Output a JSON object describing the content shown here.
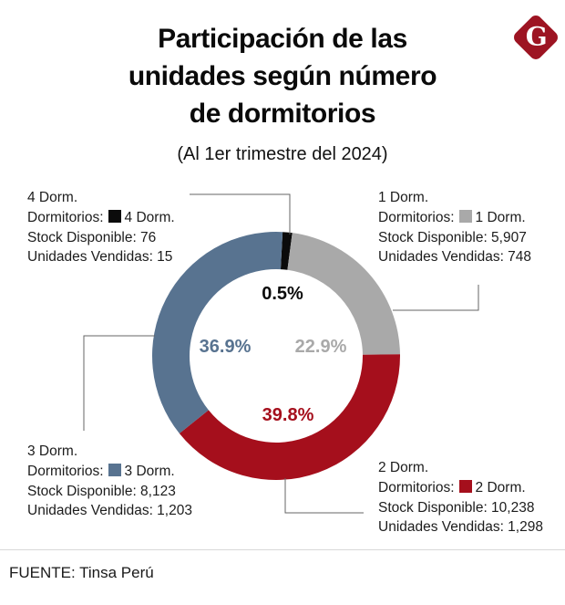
{
  "header": {
    "title_lines": [
      "Participación de las",
      "unidades según número",
      "de dormitorios"
    ],
    "subtitle": "(Al 1er trimestre del 2024)",
    "logo_letter": "G",
    "logo_color": "#9d1422"
  },
  "chart_data": {
    "type": "pie",
    "donut": true,
    "title": "Participación de las unidades según número de dormitorios (Al 1er trimestre del 2024)",
    "unit": "%",
    "start_at_top": true,
    "clockwise": true,
    "slices": [
      {
        "name": "4 Dorm.",
        "value": 0.5,
        "pct_label": "0.5%",
        "color": "#0b0b0b",
        "stock_disponible": 76,
        "unidades_vendidas": 15
      },
      {
        "name": "1 Dorm.",
        "value": 22.9,
        "pct_label": "22.9%",
        "color": "#a9a9a9",
        "stock_disponible": 5907,
        "unidades_vendidas": 748
      },
      {
        "name": "2 Dorm.",
        "value": 39.8,
        "pct_label": "39.8%",
        "color": "#a50f1c",
        "stock_disponible": 10238,
        "unidades_vendidas": 1298
      },
      {
        "name": "3 Dorm.",
        "value": 36.9,
        "pct_label": "36.9%",
        "color": "#587390",
        "stock_disponible": 8123,
        "unidades_vendidas": 1203
      }
    ]
  },
  "annotations": [
    {
      "title": "4 Dorm.",
      "legend_label": "Dormitorios:",
      "legend_value": "4 Dorm.",
      "stock_line": "Stock Disponible: 76",
      "sold_line": "Unidades Vendidas: 15",
      "color": "#0b0b0b"
    },
    {
      "title": "1 Dorm.",
      "legend_label": "Dormitorios:",
      "legend_value": "1 Dorm.",
      "stock_line": "Stock Disponible: 5,907",
      "sold_line": "Unidades Vendidas: 748",
      "color": "#a9a9a9"
    },
    {
      "title": "3 Dorm.",
      "legend_label": "Dormitorios:",
      "legend_value": "3 Dorm.",
      "stock_line": "Stock Disponible: 8,123",
      "sold_line": "Unidades Vendidas: 1,203",
      "color": "#587390"
    },
    {
      "title": "2 Dorm.",
      "legend_label": "Dormitorios:",
      "legend_value": "2 Dorm.",
      "stock_line": "Stock Disponible: 10,238",
      "sold_line": "Unidades Vendidas: 1,298",
      "color": "#a50f1c"
    }
  ],
  "footer": {
    "source": "FUENTE: Tinsa Perú"
  }
}
